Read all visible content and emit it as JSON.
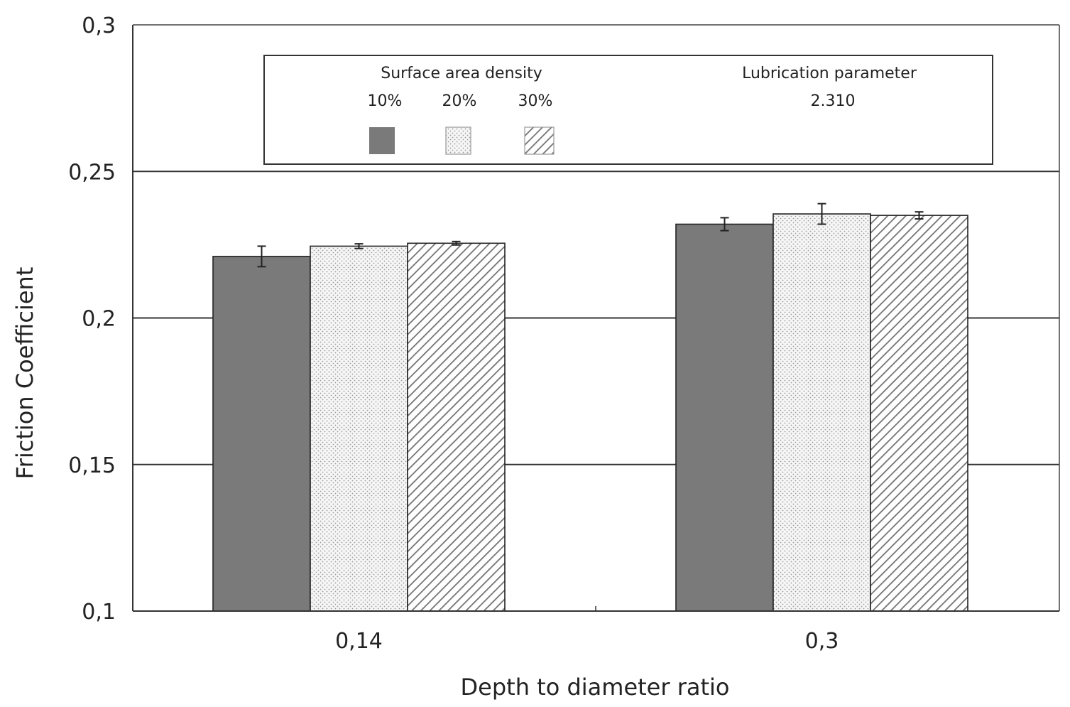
{
  "chart_data": {
    "type": "bar",
    "title": "",
    "xlabel": "Depth to diameter ratio",
    "ylabel": "Friction Coefficient",
    "ylim": [
      0.1,
      0.3
    ],
    "yticks": [
      0.1,
      0.15,
      0.2,
      0.25,
      0.3
    ],
    "ytick_labels": [
      "0,1",
      "0,15",
      "0,2",
      "0,25",
      "0,3"
    ],
    "categories": [
      "0,14",
      "0,3"
    ],
    "grid": "horizontal",
    "legend": {
      "placement": "top",
      "title": "Surface area density",
      "extra_title": "Lubrication parameter",
      "extra_value": "2.310"
    },
    "series": [
      {
        "name": "10%",
        "pattern": "solid",
        "color": "#7a7a7a",
        "values": [
          0.221,
          0.232
        ],
        "errors": [
          0.0035,
          0.0022
        ]
      },
      {
        "name": "20%",
        "pattern": "dots",
        "color": "#f4f4f4",
        "values": [
          0.2245,
          0.2355
        ],
        "errors": [
          0.0008,
          0.0035
        ]
      },
      {
        "name": "30%",
        "pattern": "hatch",
        "color": "#ffffff",
        "values": [
          0.2255,
          0.235
        ],
        "errors": [
          0.0006,
          0.0012
        ]
      }
    ]
  }
}
